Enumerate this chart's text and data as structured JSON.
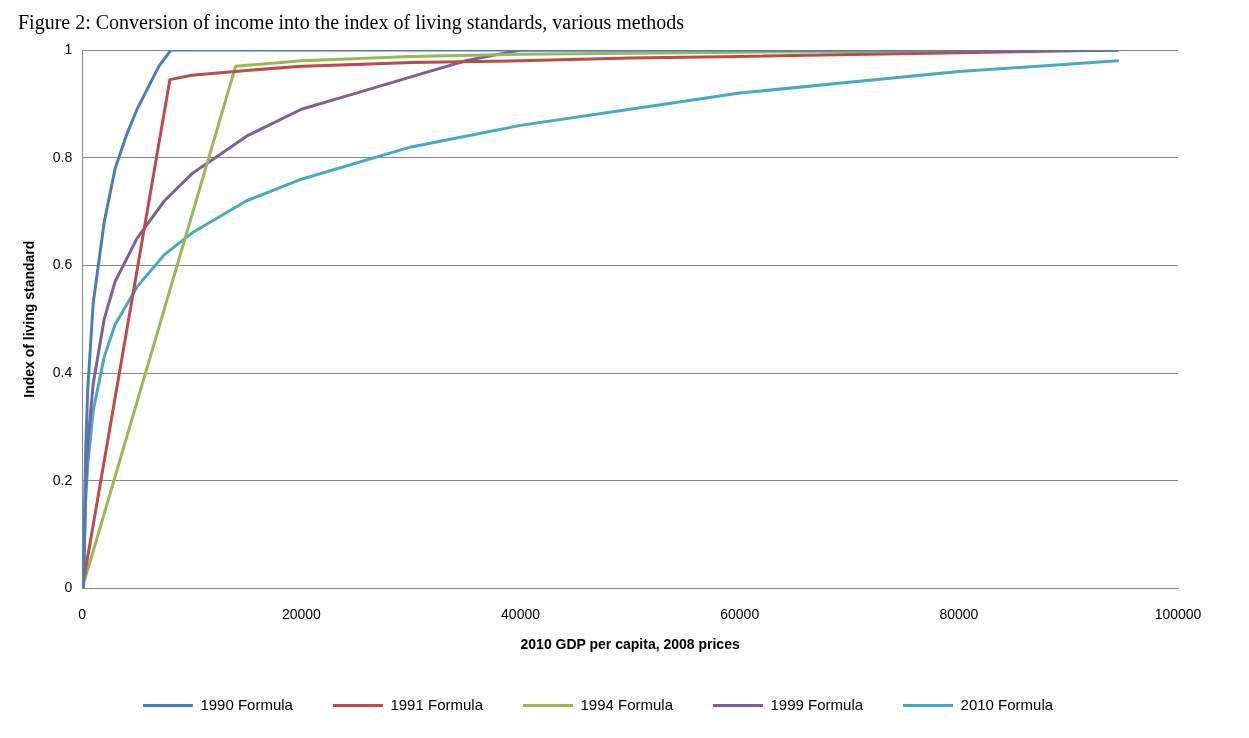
{
  "chart_data": {
    "type": "line",
    "title": "Figure 2: Conversion of income into the index of living standards, various methods",
    "xlabel": "2010 GDP per capita, 2008 prices",
    "ylabel": "Index of living standard",
    "xlim": [
      0,
      100000
    ],
    "xticks": [
      0,
      20000,
      40000,
      60000,
      80000,
      100000
    ],
    "ylim": [
      0,
      1
    ],
    "yticks": [
      0,
      0.2,
      0.4,
      0.6,
      0.8,
      1
    ],
    "grid": "y",
    "legend": "bottom",
    "marker": "none",
    "line_style": "solid",
    "series": [
      {
        "name": "1990 Formula",
        "color": "#4a7ebb",
        "x": [
          100,
          300,
          500,
          1000,
          2000,
          3000,
          4000,
          5000,
          6000,
          7000,
          8100,
          94500
        ],
        "values": [
          0,
          0.25,
          0.37,
          0.53,
          0.68,
          0.78,
          0.84,
          0.89,
          0.93,
          0.97,
          1,
          1
        ]
      },
      {
        "name": "1991 Formula",
        "color": "#be4b48",
        "x": [
          0,
          8000,
          10000,
          15000,
          20000,
          25000,
          30000,
          40000,
          50000,
          60000,
          80000,
          94500
        ],
        "values": [
          0,
          0.945,
          0.953,
          0.962,
          0.97,
          0.973,
          0.977,
          0.98,
          0.985,
          0.988,
          0.995,
          1
        ]
      },
      {
        "name": "1994 Formula",
        "color": "#98b954",
        "x": [
          0,
          14000,
          20000,
          30000,
          40000,
          60000,
          94500
        ],
        "values": [
          0,
          0.97,
          0.98,
          0.988,
          0.992,
          0.996,
          1
        ]
      },
      {
        "name": "1999 Formula",
        "color": "#7d60a0",
        "x": [
          100,
          300,
          500,
          1000,
          2000,
          3000,
          5000,
          7500,
          10000,
          15000,
          20000,
          25000,
          30000,
          35000,
          40000,
          94500
        ],
        "values": [
          0,
          0.18,
          0.27,
          0.38,
          0.5,
          0.57,
          0.65,
          0.72,
          0.77,
          0.84,
          0.89,
          0.92,
          0.95,
          0.98,
          1,
          1
        ]
      },
      {
        "name": "2010 Formula",
        "color": "#46aac5",
        "x": [
          100,
          300,
          500,
          1000,
          2000,
          3000,
          5000,
          7500,
          10000,
          15000,
          20000,
          30000,
          40000,
          50000,
          60000,
          70000,
          80000,
          94500
        ],
        "values": [
          0,
          0.16,
          0.23,
          0.33,
          0.43,
          0.49,
          0.56,
          0.62,
          0.66,
          0.72,
          0.76,
          0.82,
          0.86,
          0.89,
          0.92,
          0.94,
          0.96,
          0.98
        ]
      }
    ]
  }
}
